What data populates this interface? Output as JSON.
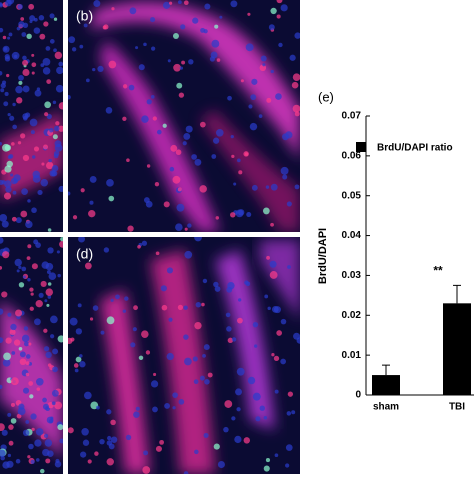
{
  "panels": [
    "(b)",
    "(d)"
  ],
  "chart_data": {
    "type": "bar",
    "panel_label": "(e)",
    "y_label": "BrdU/DAPI",
    "categories": [
      "sham",
      "TBI"
    ],
    "values": [
      0.005,
      0.023
    ],
    "errors": [
      0.0025,
      0.0045
    ],
    "series_name": "BrdU/DAPI ratio",
    "color": "#000000",
    "annotations": [
      {
        "text": "**",
        "category": 1,
        "y": 0.031
      }
    ],
    "ylim": [
      0,
      0.07
    ],
    "yticks": [
      0,
      0.01,
      0.02,
      0.03,
      0.04,
      0.05,
      0.06,
      0.07
    ]
  }
}
